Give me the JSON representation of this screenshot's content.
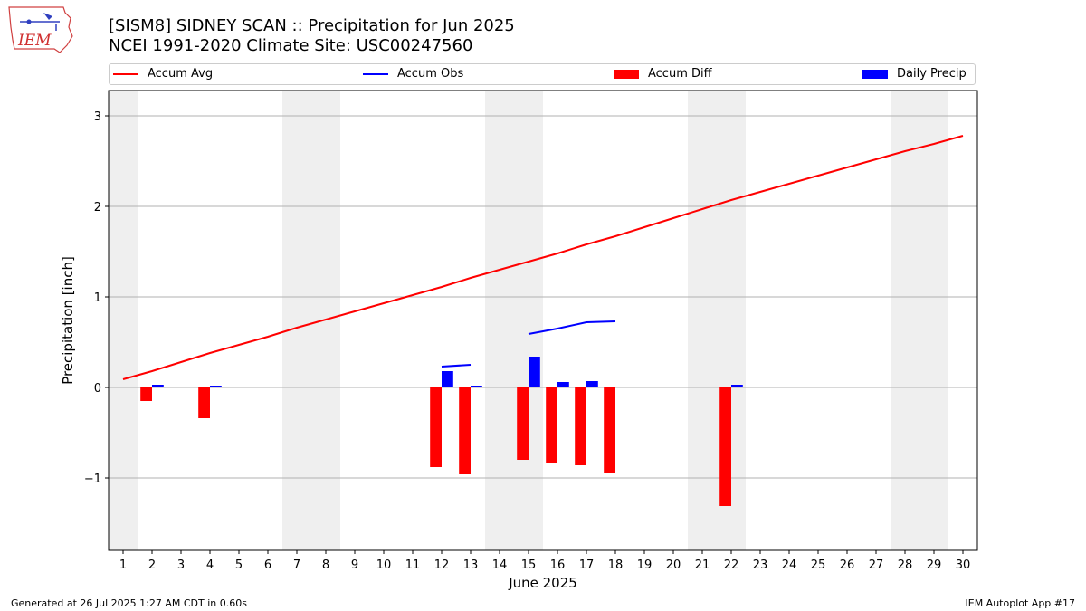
{
  "header": {
    "title": "[SISM8] SIDNEY SCAN :: Precipitation for Jun 2025",
    "subtitle": "NCEI 1991-2020 Climate Site: USC00247560",
    "logo_text": "IEM"
  },
  "legend": [
    {
      "label": "Accum Avg",
      "kind": "line",
      "color": "#ff0000"
    },
    {
      "label": "Accum Obs",
      "kind": "line",
      "color": "#0000ff"
    },
    {
      "label": "Accum Diff",
      "kind": "patch",
      "color": "#ff0000"
    },
    {
      "label": "Daily Precip",
      "kind": "patch",
      "color": "#0000ff"
    }
  ],
  "chart_data": {
    "type": "bar",
    "xlabel": "June 2025",
    "ylabel": "Precipitation [inch]",
    "xlim": [
      0.5,
      30.5
    ],
    "ylim": [
      -1.8,
      3.28
    ],
    "yticks": [
      -1,
      0,
      1,
      2,
      3
    ],
    "ytick_labels": [
      "−1",
      "0",
      "1",
      "2",
      "3"
    ],
    "days": [
      1,
      2,
      3,
      4,
      5,
      6,
      7,
      8,
      9,
      10,
      11,
      12,
      13,
      14,
      15,
      16,
      17,
      18,
      19,
      20,
      21,
      22,
      23,
      24,
      25,
      26,
      27,
      28,
      29,
      30
    ],
    "grid": "horizontal",
    "weekend_shading": [
      [
        0.5,
        1.5
      ],
      [
        6.5,
        8.5
      ],
      [
        13.5,
        15.5
      ],
      [
        20.5,
        22.5
      ],
      [
        27.5,
        29.5
      ]
    ],
    "series": [
      {
        "name": "Accum Avg",
        "color": "#ff0000",
        "x": [
          1,
          2,
          3,
          4,
          5,
          6,
          7,
          8,
          9,
          10,
          11,
          12,
          13,
          14,
          15,
          16,
          17,
          18,
          19,
          20,
          21,
          22,
          23,
          24,
          25,
          26,
          27,
          28,
          29,
          30
        ],
        "values": [
          0.09,
          0.18,
          0.28,
          0.38,
          0.47,
          0.56,
          0.66,
          0.75,
          0.84,
          0.93,
          1.02,
          1.11,
          1.21,
          1.3,
          1.39,
          1.48,
          1.58,
          1.67,
          1.77,
          1.87,
          1.97,
          2.07,
          2.16,
          2.25,
          2.34,
          2.43,
          2.52,
          2.61,
          2.69,
          2.78
        ]
      },
      {
        "name": "Accum Obs",
        "color": "#0000ff",
        "segments": [
          {
            "x": [
              12,
              13
            ],
            "values": [
              0.23,
              0.25
            ]
          },
          {
            "x": [
              15,
              16,
              17,
              18
            ],
            "values": [
              0.59,
              0.65,
              0.72,
              0.73
            ]
          }
        ]
      },
      {
        "name": "Accum Diff",
        "color": "#ff0000",
        "x": [
          2,
          4,
          12,
          13,
          15,
          16,
          17,
          18,
          22
        ],
        "values": [
          -0.15,
          -0.34,
          -0.88,
          -0.96,
          -0.8,
          -0.83,
          -0.86,
          -0.94,
          -1.31
        ]
      },
      {
        "name": "Daily Precip",
        "color": "#0000ff",
        "x": [
          2,
          4,
          12,
          13,
          15,
          16,
          17,
          18,
          22
        ],
        "values": [
          0.03,
          0.02,
          0.18,
          0.02,
          0.34,
          0.06,
          0.07,
          0.01,
          0.03
        ]
      }
    ]
  },
  "footer": {
    "generated": "Generated at 26 Jul 2025 1:27 AM CDT in 0.60s",
    "app": "IEM Autoplot App #17"
  }
}
